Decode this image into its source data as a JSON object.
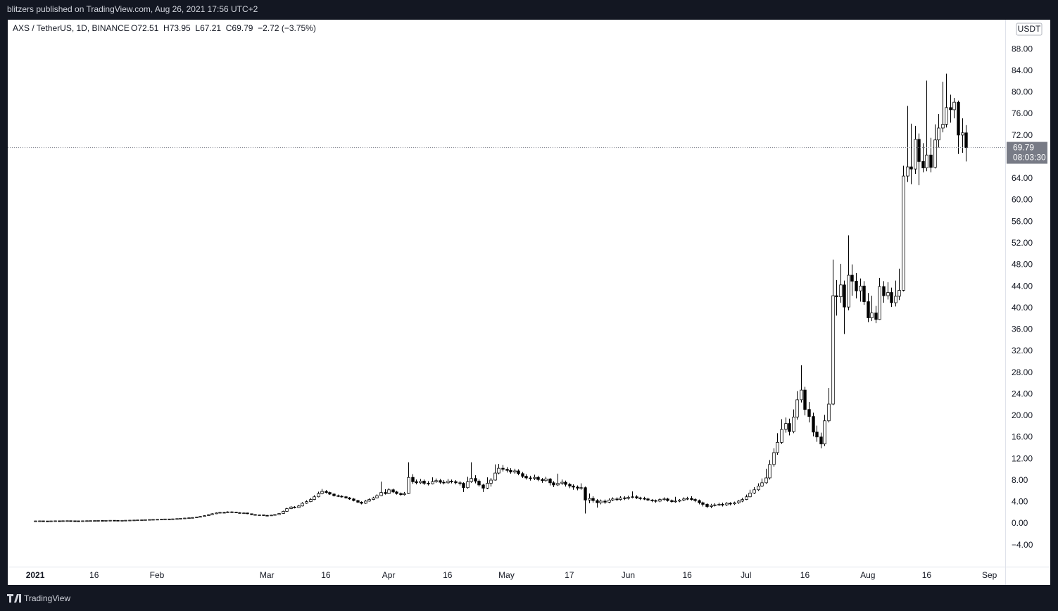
{
  "header": {
    "publisher": "blitzers published on TradingView.com, Aug 26, 2021 17:56 UTC+2",
    "brand": "TradingView"
  },
  "chart_data": {
    "type": "candlestick",
    "symbol": "AXS / TetherUS, 1D, BINANCE",
    "legend_values": "O72.51  H73.95  L67.21  C69.79  −2.72 (−3.75%)",
    "currency": "USDT",
    "countdown": "08:03:30",
    "up_color": "#ffffff",
    "down_color": "#000000",
    "wick_color": "#000000",
    "last_price_line": true,
    "x": [
      "2021-01-01",
      "2021-01-02",
      "2021-01-03",
      "2021-01-04",
      "2021-01-05",
      "2021-01-06",
      "2021-01-07",
      "2021-01-08",
      "2021-01-09",
      "2021-01-10",
      "2021-01-11",
      "2021-01-12",
      "2021-01-13",
      "2021-01-14",
      "2021-01-15",
      "2021-01-16",
      "2021-01-17",
      "2021-01-18",
      "2021-01-19",
      "2021-01-20",
      "2021-01-21",
      "2021-01-22",
      "2021-01-23",
      "2021-01-24",
      "2021-01-25",
      "2021-01-26",
      "2021-01-27",
      "2021-01-28",
      "2021-01-29",
      "2021-01-30",
      "2021-01-31",
      "2021-02-01",
      "2021-02-02",
      "2021-02-03",
      "2021-02-04",
      "2021-02-05",
      "2021-02-06",
      "2021-02-07",
      "2021-02-08",
      "2021-02-09",
      "2021-02-10",
      "2021-02-11",
      "2021-02-12",
      "2021-02-13",
      "2021-02-14",
      "2021-02-15",
      "2021-02-16",
      "2021-02-17",
      "2021-02-18",
      "2021-02-19",
      "2021-02-20",
      "2021-02-21",
      "2021-02-22",
      "2021-02-23",
      "2021-02-24",
      "2021-02-25",
      "2021-02-26",
      "2021-02-27",
      "2021-02-28",
      "2021-03-01",
      "2021-03-02",
      "2021-03-03",
      "2021-03-04",
      "2021-03-05",
      "2021-03-06",
      "2021-03-07",
      "2021-03-08",
      "2021-03-09",
      "2021-03-10",
      "2021-03-11",
      "2021-03-12",
      "2021-03-13",
      "2021-03-14",
      "2021-03-15",
      "2021-03-16",
      "2021-03-17",
      "2021-03-18",
      "2021-03-19",
      "2021-03-20",
      "2021-03-21",
      "2021-03-22",
      "2021-03-23",
      "2021-03-24",
      "2021-03-25",
      "2021-03-26",
      "2021-03-27",
      "2021-03-28",
      "2021-03-29",
      "2021-03-30",
      "2021-03-31",
      "2021-04-01",
      "2021-04-02",
      "2021-04-03",
      "2021-04-04",
      "2021-04-05",
      "2021-04-06",
      "2021-04-07",
      "2021-04-08",
      "2021-04-09",
      "2021-04-10",
      "2021-04-11",
      "2021-04-12",
      "2021-04-13",
      "2021-04-14",
      "2021-04-15",
      "2021-04-16",
      "2021-04-17",
      "2021-04-18",
      "2021-04-19",
      "2021-04-20",
      "2021-04-21",
      "2021-04-22",
      "2021-04-23",
      "2021-04-24",
      "2021-04-25",
      "2021-04-26",
      "2021-04-27",
      "2021-04-28",
      "2021-04-29",
      "2021-04-30",
      "2021-05-01",
      "2021-05-02",
      "2021-05-03",
      "2021-05-04",
      "2021-05-05",
      "2021-05-06",
      "2021-05-07",
      "2021-05-08",
      "2021-05-09",
      "2021-05-10",
      "2021-05-11",
      "2021-05-12",
      "2021-05-13",
      "2021-05-14",
      "2021-05-15",
      "2021-05-16",
      "2021-05-17",
      "2021-05-18",
      "2021-05-19",
      "2021-05-20",
      "2021-05-21",
      "2021-05-22",
      "2021-05-23",
      "2021-05-24",
      "2021-05-25",
      "2021-05-26",
      "2021-05-27",
      "2021-05-28",
      "2021-05-29",
      "2021-05-30",
      "2021-05-31",
      "2021-06-01",
      "2021-06-02",
      "2021-06-03",
      "2021-06-04",
      "2021-06-05",
      "2021-06-06",
      "2021-06-07",
      "2021-06-08",
      "2021-06-09",
      "2021-06-10",
      "2021-06-11",
      "2021-06-12",
      "2021-06-13",
      "2021-06-14",
      "2021-06-15",
      "2021-06-16",
      "2021-06-17",
      "2021-06-18",
      "2021-06-19",
      "2021-06-20",
      "2021-06-21",
      "2021-06-22",
      "2021-06-23",
      "2021-06-24",
      "2021-06-25",
      "2021-06-26",
      "2021-06-27",
      "2021-06-28",
      "2021-06-29",
      "2021-06-30",
      "2021-07-01",
      "2021-07-02",
      "2021-07-03",
      "2021-07-04",
      "2021-07-05",
      "2021-07-06",
      "2021-07-07",
      "2021-07-08",
      "2021-07-09",
      "2021-07-10",
      "2021-07-11",
      "2021-07-12",
      "2021-07-13",
      "2021-07-14",
      "2021-07-15",
      "2021-07-16",
      "2021-07-17",
      "2021-07-18",
      "2021-07-19",
      "2021-07-20",
      "2021-07-21",
      "2021-07-22",
      "2021-07-23",
      "2021-07-24",
      "2021-07-25",
      "2021-07-26",
      "2021-07-27",
      "2021-07-28",
      "2021-07-29",
      "2021-07-30",
      "2021-07-31",
      "2021-08-01",
      "2021-08-02",
      "2021-08-03",
      "2021-08-04",
      "2021-08-05",
      "2021-08-06",
      "2021-08-07",
      "2021-08-08",
      "2021-08-09",
      "2021-08-10",
      "2021-08-11",
      "2021-08-12",
      "2021-08-13",
      "2021-08-14",
      "2021-08-15",
      "2021-08-16",
      "2021-08-17",
      "2021-08-18",
      "2021-08-19",
      "2021-08-20",
      "2021-08-21",
      "2021-08-22",
      "2021-08-23",
      "2021-08-24",
      "2021-08-25",
      "2021-08-26"
    ],
    "open": [
      0.51,
      0.52,
      0.53,
      0.51,
      0.5,
      0.52,
      0.54,
      0.53,
      0.55,
      0.56,
      0.54,
      0.53,
      0.52,
      0.54,
      0.56,
      0.57,
      0.58,
      0.6,
      0.59,
      0.61,
      0.63,
      0.62,
      0.6,
      0.62,
      0.64,
      0.66,
      0.68,
      0.7,
      0.72,
      0.75,
      0.78,
      0.8,
      0.82,
      0.85,
      0.88,
      0.86,
      0.9,
      0.95,
      1.0,
      1.05,
      1.1,
      1.15,
      1.25,
      1.35,
      1.5,
      1.7,
      1.85,
      2.0,
      2.1,
      2.05,
      2.2,
      2.15,
      2.05,
      1.95,
      2.0,
      1.85,
      1.7,
      1.6,
      1.65,
      1.55,
      1.5,
      1.6,
      1.7,
      1.9,
      2.3,
      2.8,
      3.1,
      3.0,
      3.3,
      3.8,
      4.1,
      4.5,
      5.0,
      5.6,
      6.0,
      5.8,
      5.5,
      5.2,
      5.1,
      5.0,
      4.8,
      4.6,
      4.3,
      4.0,
      3.8,
      4.2,
      4.5,
      4.8,
      5.2,
      5.8,
      5.6,
      6.3,
      5.9,
      5.6,
      5.4,
      5.6,
      8.6,
      7.8,
      7.6,
      7.9,
      7.5,
      7.4,
      7.8,
      8.0,
      7.7,
      7.6,
      7.9,
      7.8,
      7.6,
      7.5,
      6.7,
      7.8,
      8.4,
      7.9,
      7.2,
      6.6,
      7.5,
      8.1,
      9.4,
      10.3,
      10.1,
      9.9,
      9.6,
      9.8,
      9.3,
      8.8,
      8.5,
      8.4,
      8.6,
      8.2,
      8.0,
      8.3,
      7.6,
      7.2,
      7.5,
      7.7,
      7.3,
      7.0,
      6.8,
      6.6,
      6.7,
      4.4,
      4.7,
      4.3,
      3.9,
      4.2,
      4.0,
      4.4,
      4.6,
      4.5,
      4.8,
      4.7,
      4.9,
      5.0,
      4.8,
      4.7,
      4.6,
      4.4,
      4.3,
      4.2,
      4.5,
      4.6,
      4.3,
      4.1,
      4.2,
      4.4,
      4.6,
      4.7,
      4.5,
      4.3,
      3.9,
      3.6,
      3.2,
      3.4,
      3.5,
      3.6,
      3.5,
      3.8,
      3.7,
      3.9,
      4.2,
      4.5,
      5.0,
      5.7,
      6.3,
      7.0,
      7.6,
      8.5,
      11.0,
      13.2,
      15.1,
      17.5,
      18.6,
      17.1,
      19.8,
      23.0,
      24.8,
      21.2,
      19.9,
      17.0,
      16.1,
      14.8,
      19.1,
      22.2,
      42.3,
      42.1,
      44.3,
      40.2,
      46.1,
      45.0,
      43.2,
      44.1,
      41.2,
      38.2,
      39.1,
      37.9,
      44.0,
      42.3,
      42.9,
      41.0,
      42.2,
      43.3,
      64.5,
      66.2,
      65.8,
      71.3,
      67.2,
      66.0,
      68.4,
      66.1,
      71.2,
      73.4,
      74.1,
      77.2,
      76.8,
      78.2,
      72.1,
      72.51
    ],
    "high": [
      0.54,
      0.55,
      0.55,
      0.53,
      0.54,
      0.56,
      0.56,
      0.57,
      0.58,
      0.58,
      0.56,
      0.55,
      0.56,
      0.58,
      0.59,
      0.6,
      0.62,
      0.62,
      0.63,
      0.65,
      0.65,
      0.64,
      0.64,
      0.66,
      0.68,
      0.7,
      0.72,
      0.75,
      0.78,
      0.81,
      0.83,
      0.85,
      0.88,
      0.91,
      0.91,
      0.93,
      0.98,
      1.04,
      1.09,
      1.14,
      1.2,
      1.3,
      1.41,
      1.57,
      1.78,
      1.94,
      2.1,
      2.21,
      2.18,
      2.31,
      2.3,
      2.22,
      2.12,
      2.08,
      2.05,
      1.9,
      1.75,
      1.72,
      1.7,
      1.62,
      1.66,
      1.77,
      1.98,
      2.42,
      2.95,
      3.28,
      3.25,
      3.48,
      4.0,
      4.35,
      4.75,
      5.3,
      5.95,
      6.45,
      6.25,
      5.95,
      5.65,
      5.4,
      5.3,
      5.15,
      4.95,
      4.75,
      4.45,
      4.15,
      4.4,
      4.7,
      5.0,
      5.45,
      7.8,
      6.4,
      6.6,
      6.5,
      6.1,
      5.8,
      5.9,
      11.4,
      9.2,
      8.2,
      8.3,
      8.2,
      7.9,
      8.6,
      8.4,
      8.3,
      8.1,
      8.3,
      8.2,
      8.1,
      7.9,
      7.7,
      8.7,
      11.4,
      9.0,
      8.2,
      7.4,
      8.6,
      8.5,
      11.0,
      11.1,
      10.9,
      10.5,
      10.3,
      10.2,
      10.1,
      9.6,
      9.2,
      8.9,
      9.1,
      8.9,
      8.5,
      8.7,
      8.5,
      7.9,
      9.3,
      8.2,
      8.0,
      7.6,
      7.3,
      7.1,
      7.5,
      6.9,
      5.6,
      5.1,
      4.6,
      4.5,
      4.5,
      4.7,
      4.9,
      4.9,
      5.1,
      5.1,
      5.2,
      6.0,
      5.3,
      5.0,
      5.0,
      4.8,
      4.6,
      4.5,
      4.7,
      4.9,
      4.8,
      4.5,
      5.0,
      4.6,
      4.9,
      5.0,
      5.1,
      4.7,
      4.5,
      4.1,
      3.8,
      3.7,
      3.8,
      3.9,
      3.9,
      4.0,
      4.0,
      4.1,
      4.4,
      4.8,
      5.4,
      6.3,
      6.8,
      7.5,
      8.4,
      10.2,
      11.8,
      14.0,
      16.8,
      19.4,
      19.7,
      19.5,
      21.2,
      24.6,
      29.4,
      25.4,
      22.6,
      20.6,
      18.2,
      16.9,
      20.2,
      25.2,
      49.0,
      45.2,
      48.2,
      45.1,
      53.5,
      48.1,
      46.5,
      45.5,
      45.0,
      42.8,
      42.3,
      40.4,
      45.6,
      45.0,
      44.8,
      43.8,
      45.1,
      47.3,
      66.4,
      77.5,
      74.2,
      73.8,
      72.4,
      70.6,
      82.2,
      71.6,
      74.1,
      76.0,
      82.0,
      83.5,
      79.6,
      79.0,
      78.5,
      75.2,
      73.95
    ],
    "low": [
      0.5,
      0.51,
      0.49,
      0.48,
      0.49,
      0.51,
      0.52,
      0.52,
      0.54,
      0.53,
      0.51,
      0.5,
      0.51,
      0.53,
      0.55,
      0.56,
      0.57,
      0.58,
      0.58,
      0.6,
      0.6,
      0.58,
      0.59,
      0.61,
      0.63,
      0.65,
      0.67,
      0.69,
      0.71,
      0.74,
      0.77,
      0.78,
      0.8,
      0.83,
      0.84,
      0.85,
      0.88,
      0.93,
      0.98,
      1.02,
      1.07,
      1.12,
      1.22,
      1.32,
      1.46,
      1.65,
      1.8,
      1.94,
      1.98,
      2.0,
      2.08,
      1.98,
      1.88,
      1.9,
      1.78,
      1.62,
      1.52,
      1.55,
      1.48,
      1.44,
      1.46,
      1.56,
      1.66,
      1.85,
      2.24,
      2.72,
      2.85,
      2.92,
      3.22,
      3.7,
      4.0,
      4.4,
      4.9,
      5.45,
      5.6,
      5.35,
      5.05,
      4.95,
      4.85,
      4.65,
      4.45,
      4.15,
      3.85,
      3.6,
      3.7,
      4.1,
      4.4,
      4.7,
      5.1,
      5.4,
      5.5,
      5.7,
      5.4,
      5.2,
      5.25,
      5.5,
      7.4,
      7.3,
      7.4,
      7.2,
      7.1,
      7.3,
      7.6,
      7.4,
      7.3,
      7.4,
      7.5,
      7.3,
      7.1,
      5.9,
      6.5,
      7.6,
      7.5,
      6.9,
      5.9,
      6.4,
      6.9,
      8.0,
      9.2,
      9.7,
      9.5,
      9.3,
      9.3,
      9.0,
      8.5,
      8.2,
      8.0,
      8.1,
      7.9,
      7.6,
      7.8,
      7.1,
      6.8,
      7.0,
      7.2,
      6.9,
      6.6,
      6.3,
      6.2,
      6.3,
      1.9,
      3.8,
      3.9,
      3.0,
      3.6,
      3.7,
      3.8,
      4.2,
      4.2,
      4.3,
      4.4,
      4.5,
      4.7,
      4.6,
      4.4,
      4.4,
      4.2,
      4.0,
      3.9,
      4.0,
      4.3,
      4.1,
      3.9,
      3.9,
      4.0,
      4.2,
      4.4,
      4.3,
      4.0,
      3.6,
      3.2,
      2.9,
      2.9,
      3.2,
      3.3,
      3.2,
      3.3,
      3.4,
      3.5,
      3.7,
      4.0,
      4.4,
      4.9,
      5.5,
      6.1,
      6.8,
      7.4,
      8.2,
      10.6,
      12.8,
      14.8,
      16.9,
      16.4,
      16.8,
      19.3,
      22.5,
      20.1,
      18.8,
      16.2,
      15.2,
      14.0,
      14.4,
      18.8,
      22.0,
      38.6,
      41.0,
      35.2,
      39.6,
      42.3,
      41.8,
      41.2,
      40.6,
      37.4,
      37.6,
      37.2,
      37.8,
      41.0,
      41.6,
      40.2,
      40.3,
      41.5,
      43.1,
      63.4,
      63.0,
      64.9,
      62.8,
      65.2,
      65.4,
      65.2,
      65.9,
      69.8,
      72.6,
      73.5,
      74.4,
      75.2,
      68.6,
      68.8,
      67.21
    ],
    "close": [
      0.52,
      0.53,
      0.51,
      0.5,
      0.52,
      0.54,
      0.53,
      0.55,
      0.56,
      0.54,
      0.53,
      0.52,
      0.54,
      0.56,
      0.57,
      0.58,
      0.6,
      0.59,
      0.61,
      0.63,
      0.62,
      0.6,
      0.62,
      0.64,
      0.66,
      0.68,
      0.7,
      0.72,
      0.75,
      0.78,
      0.8,
      0.82,
      0.85,
      0.88,
      0.86,
      0.9,
      0.95,
      1.0,
      1.05,
      1.1,
      1.15,
      1.25,
      1.35,
      1.5,
      1.7,
      1.85,
      2.0,
      2.1,
      2.05,
      2.2,
      2.15,
      2.05,
      1.95,
      2.0,
      1.85,
      1.7,
      1.6,
      1.65,
      1.55,
      1.5,
      1.6,
      1.7,
      1.9,
      2.3,
      2.8,
      3.1,
      3.0,
      3.3,
      3.8,
      4.1,
      4.5,
      5.0,
      5.6,
      6.0,
      5.8,
      5.5,
      5.2,
      5.1,
      5.0,
      4.8,
      4.6,
      4.3,
      4.0,
      3.8,
      4.2,
      4.5,
      4.8,
      5.2,
      5.8,
      5.6,
      6.3,
      5.9,
      5.6,
      5.4,
      5.6,
      8.6,
      7.8,
      7.6,
      7.9,
      7.5,
      7.4,
      7.8,
      8.0,
      7.7,
      7.6,
      7.9,
      7.8,
      7.6,
      7.5,
      6.7,
      7.8,
      8.4,
      7.9,
      7.2,
      6.6,
      7.5,
      8.1,
      9.4,
      10.3,
      10.1,
      9.9,
      9.6,
      9.8,
      9.3,
      8.8,
      8.5,
      8.4,
      8.6,
      8.2,
      8.0,
      8.3,
      7.6,
      7.2,
      7.5,
      7.7,
      7.3,
      7.0,
      6.8,
      6.6,
      6.7,
      4.4,
      4.7,
      4.3,
      3.9,
      4.2,
      4.0,
      4.4,
      4.6,
      4.5,
      4.8,
      4.7,
      4.9,
      5.0,
      4.8,
      4.7,
      4.6,
      4.4,
      4.3,
      4.2,
      4.5,
      4.6,
      4.3,
      4.1,
      4.2,
      4.4,
      4.6,
      4.7,
      4.5,
      4.3,
      3.9,
      3.6,
      3.2,
      3.4,
      3.5,
      3.6,
      3.5,
      3.8,
      3.7,
      3.9,
      4.2,
      4.5,
      5.0,
      5.7,
      6.3,
      7.0,
      7.6,
      8.5,
      11.0,
      13.2,
      15.1,
      17.5,
      18.6,
      17.1,
      19.8,
      23.0,
      24.8,
      21.2,
      19.9,
      17.0,
      16.1,
      14.8,
      19.1,
      22.2,
      42.3,
      42.1,
      44.3,
      40.2,
      46.1,
      45.0,
      43.2,
      44.1,
      41.2,
      38.2,
      39.1,
      37.9,
      44.0,
      42.3,
      42.9,
      41.0,
      42.2,
      43.3,
      64.5,
      66.2,
      65.8,
      71.3,
      67.2,
      66.0,
      68.4,
      66.1,
      71.2,
      73.4,
      74.1,
      77.2,
      76.8,
      78.2,
      72.1,
      72.51,
      69.79
    ],
    "ylim": [
      -7.96,
      93.5
    ],
    "yticks": [
      {
        "value": -4,
        "label": "−4.00"
      },
      {
        "value": 0,
        "label": "0.00"
      },
      {
        "value": 4,
        "label": "4.00"
      },
      {
        "value": 8,
        "label": "8.00"
      },
      {
        "value": 12,
        "label": "12.00"
      },
      {
        "value": 16,
        "label": "16.00"
      },
      {
        "value": 20,
        "label": "20.00"
      },
      {
        "value": 24,
        "label": "24.00"
      },
      {
        "value": 28,
        "label": "28.00"
      },
      {
        "value": 32,
        "label": "32.00"
      },
      {
        "value": 36,
        "label": "36.00"
      },
      {
        "value": 40,
        "label": "40.00"
      },
      {
        "value": 44,
        "label": "44.00"
      },
      {
        "value": 48,
        "label": "48.00"
      },
      {
        "value": 52,
        "label": "52.00"
      },
      {
        "value": 56,
        "label": "56.00"
      },
      {
        "value": 60,
        "label": "60.00"
      },
      {
        "value": 64,
        "label": "64.00"
      },
      {
        "value": 68,
        "label": "68.00"
      },
      {
        "value": 72,
        "label": "72.00"
      },
      {
        "value": 76,
        "label": "76.00"
      },
      {
        "value": 80,
        "label": "80.00"
      },
      {
        "value": 84,
        "label": "84.00"
      },
      {
        "value": 88,
        "label": "88.00"
      }
    ],
    "xlim": [
      "2020-12-25",
      "2021-09-05"
    ],
    "xticks": [
      {
        "value": "2021-01-01",
        "label": "2021"
      },
      {
        "value": "2021-01-16",
        "label": "16"
      },
      {
        "value": "2021-02-01",
        "label": "Feb"
      },
      {
        "value": "2021-03-01",
        "label": "Mar"
      },
      {
        "value": "2021-03-16",
        "label": "16"
      },
      {
        "value": "2021-04-01",
        "label": "Apr"
      },
      {
        "value": "2021-04-16",
        "label": "16"
      },
      {
        "value": "2021-05-01",
        "label": "May"
      },
      {
        "value": "2021-05-17",
        "label": "17"
      },
      {
        "value": "2021-06-01",
        "label": "Jun"
      },
      {
        "value": "2021-06-16",
        "label": "16"
      },
      {
        "value": "2021-07-01",
        "label": "Jul"
      },
      {
        "value": "2021-07-16",
        "label": "16"
      },
      {
        "value": "2021-08-01",
        "label": "Aug"
      },
      {
        "value": "2021-08-16",
        "label": "16"
      },
      {
        "value": "2021-09-01",
        "label": "Sep"
      }
    ]
  }
}
